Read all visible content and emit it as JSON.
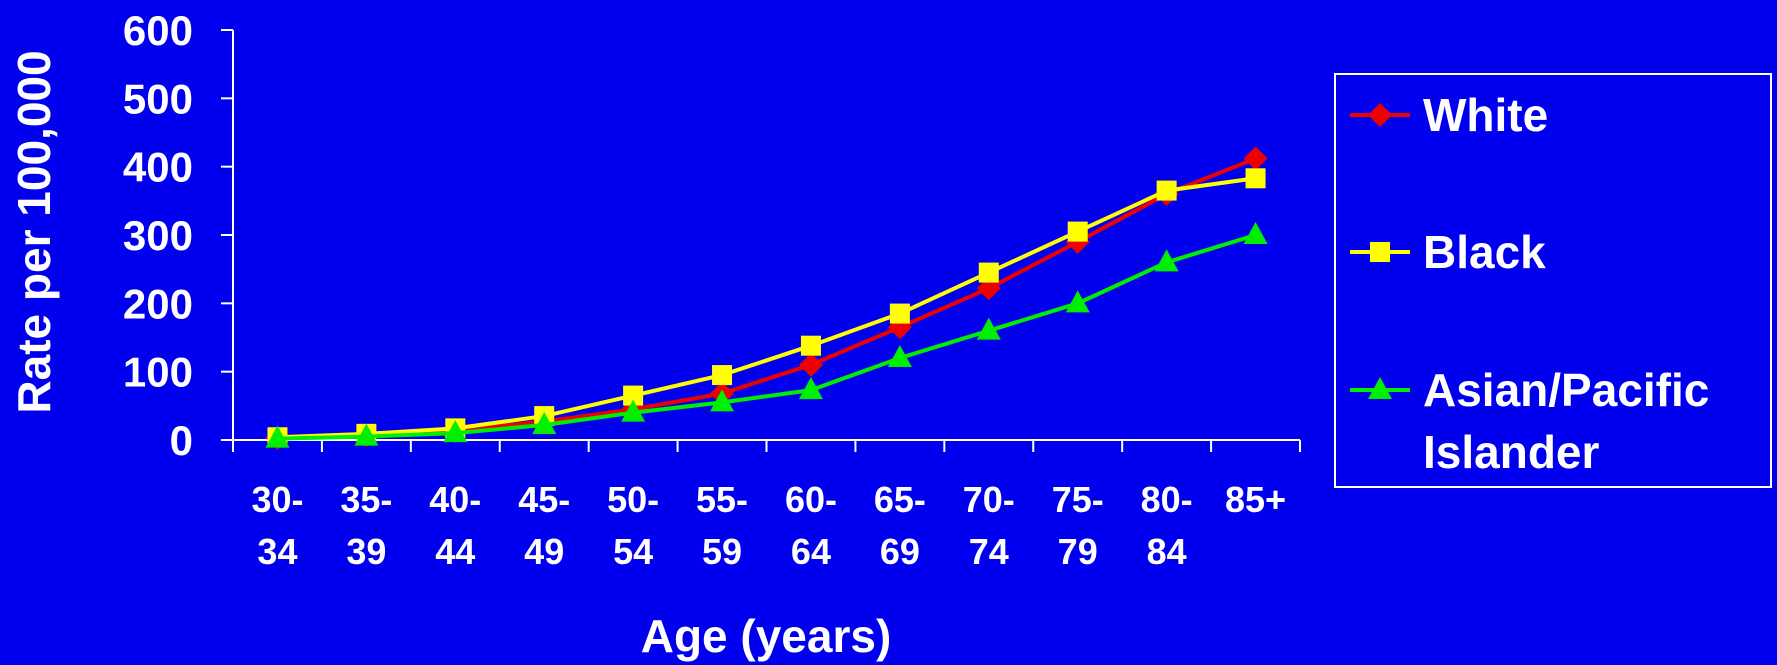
{
  "chart_data": {
    "type": "line",
    "title": "",
    "xlabel": "Age (years)",
    "ylabel": "Rate per 100,000",
    "ylim": [
      0,
      600
    ],
    "yticks": [
      "0",
      "100",
      "200",
      "300",
      "400",
      "500",
      "600"
    ],
    "categories": [
      [
        "30-",
        "34"
      ],
      [
        "35-",
        "39"
      ],
      [
        "40-",
        "44"
      ],
      [
        "45-",
        "49"
      ],
      [
        "50-",
        "54"
      ],
      [
        "55-",
        "59"
      ],
      [
        "60-",
        "64"
      ],
      [
        "65-",
        "69"
      ],
      [
        "70-",
        "74"
      ],
      [
        "75-",
        "79"
      ],
      [
        "80-",
        "84"
      ],
      [
        "85+",
        ""
      ]
    ],
    "grid": false,
    "legend_position": "right",
    "series": [
      {
        "name": "White",
        "color": "#EE0000",
        "marker": "diamond",
        "values": [
          3,
          7,
          13,
          27,
          45,
          68,
          110,
          165,
          222,
          290,
          360,
          412
        ]
      },
      {
        "name": "Black",
        "color": "#FFFF00",
        "marker": "square",
        "values": [
          4,
          9,
          17,
          35,
          65,
          95,
          138,
          185,
          245,
          305,
          365,
          383
        ]
      },
      {
        "name": "Asian/Pacific Islander",
        "name_lines": [
          "Asian/Pacific",
          "Islander"
        ],
        "color": "#00EE00",
        "marker": "triangle",
        "values": [
          2,
          5,
          10,
          22,
          40,
          55,
          73,
          120,
          160,
          200,
          260,
          300
        ]
      }
    ]
  }
}
